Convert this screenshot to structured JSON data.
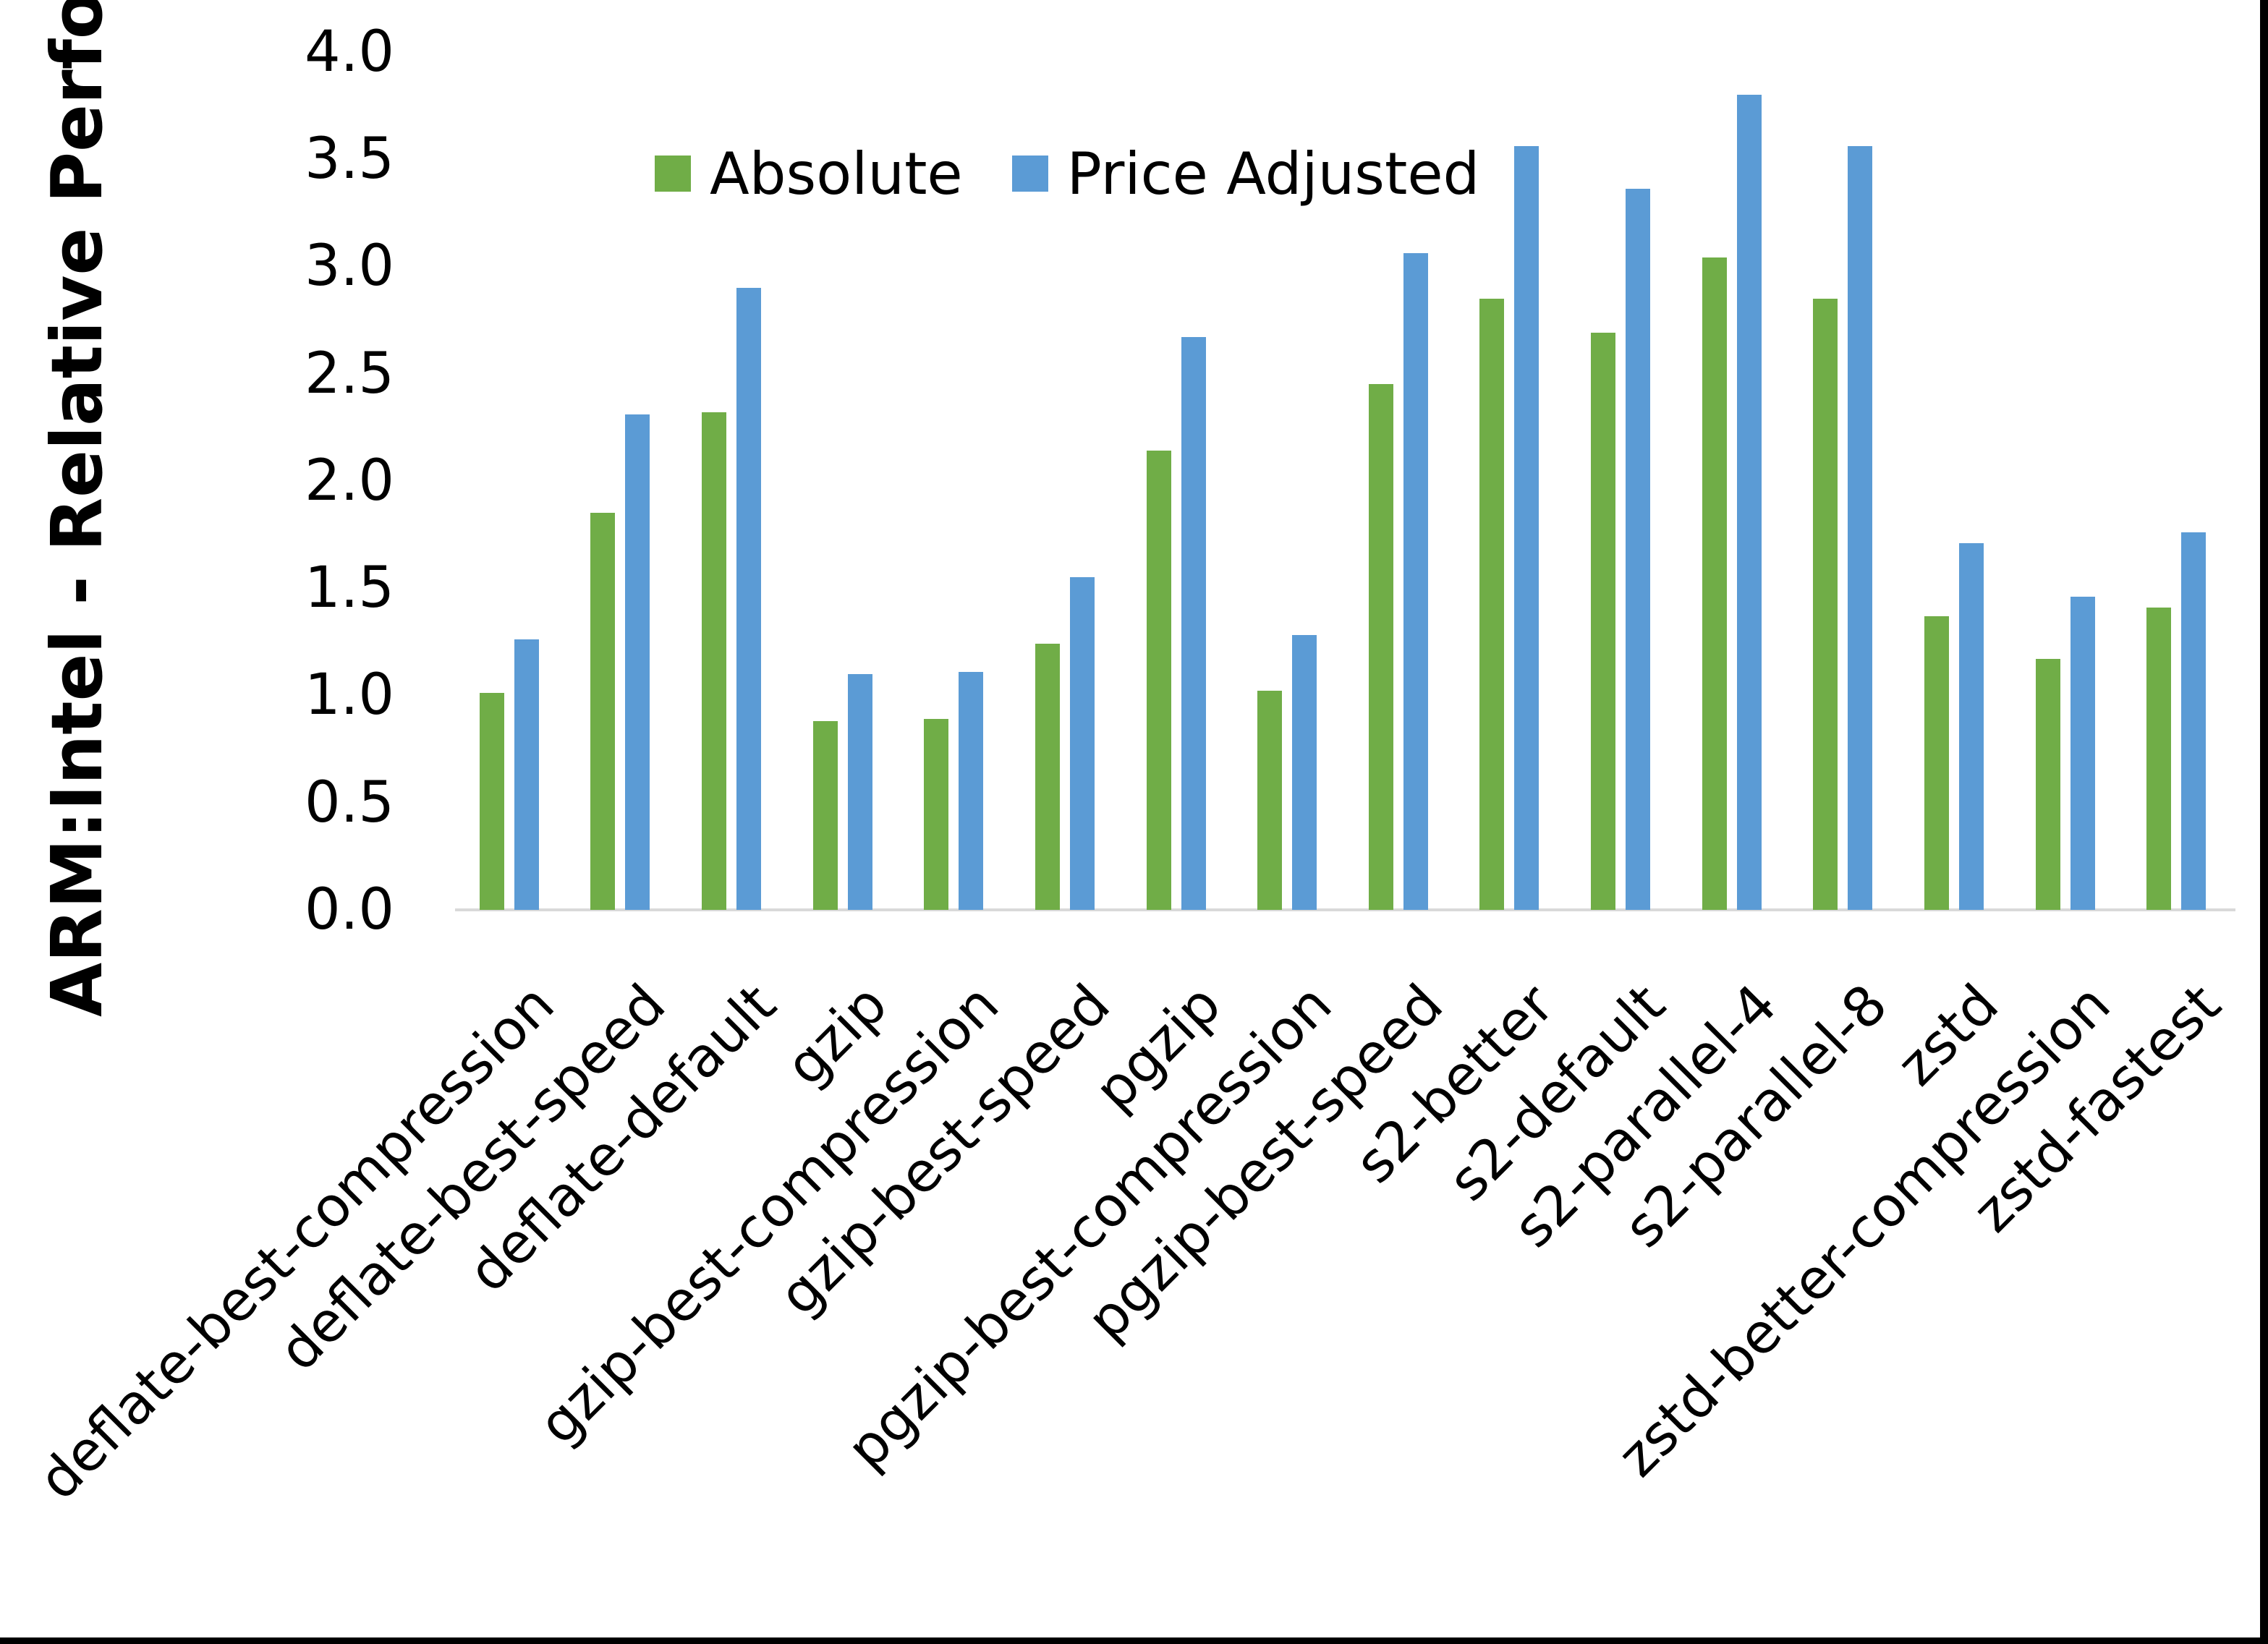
{
  "chart_data": {
    "type": "bar",
    "title": "",
    "xlabel": "",
    "ylabel": "ARM:Intel - Relative Performance",
    "ylim": [
      0.0,
      4.0
    ],
    "ytick_step": 0.5,
    "ytick_labels": [
      "0.0",
      "0.5",
      "1.0",
      "1.5",
      "2.0",
      "2.5",
      "3.0",
      "3.5",
      "4.0"
    ],
    "grid": false,
    "legend_position": "top-center",
    "categories": [
      "deflate-best-compression",
      "deflate-best-speed",
      "deflate-default",
      "gzip",
      "gzip-best-compression",
      "gzip-best-speed",
      "pgzip",
      "pgzip-best-compression",
      "pgzip-best-speed",
      "s2-better",
      "s2-default",
      "s2-parallel-4",
      "s2-parallel-8",
      "zstd",
      "zstd-better-compression",
      "zstd-fastest"
    ],
    "series": [
      {
        "name": "Absolute",
        "color": "#70AD47",
        "values": [
          1.01,
          1.85,
          2.32,
          0.88,
          0.89,
          1.24,
          2.14,
          1.02,
          2.45,
          2.85,
          2.69,
          3.04,
          2.85,
          1.37,
          1.17,
          1.41
        ]
      },
      {
        "name": "Price Adjusted",
        "color": "#5B9BD5",
        "values": [
          1.26,
          2.31,
          2.9,
          1.1,
          1.11,
          1.55,
          2.67,
          1.28,
          3.06,
          3.56,
          3.36,
          3.8,
          3.56,
          1.71,
          1.46,
          1.76
        ]
      }
    ],
    "colors": {
      "axis_line": "#D9D9D9",
      "frame_border": "#000000",
      "text": "#000000"
    }
  }
}
